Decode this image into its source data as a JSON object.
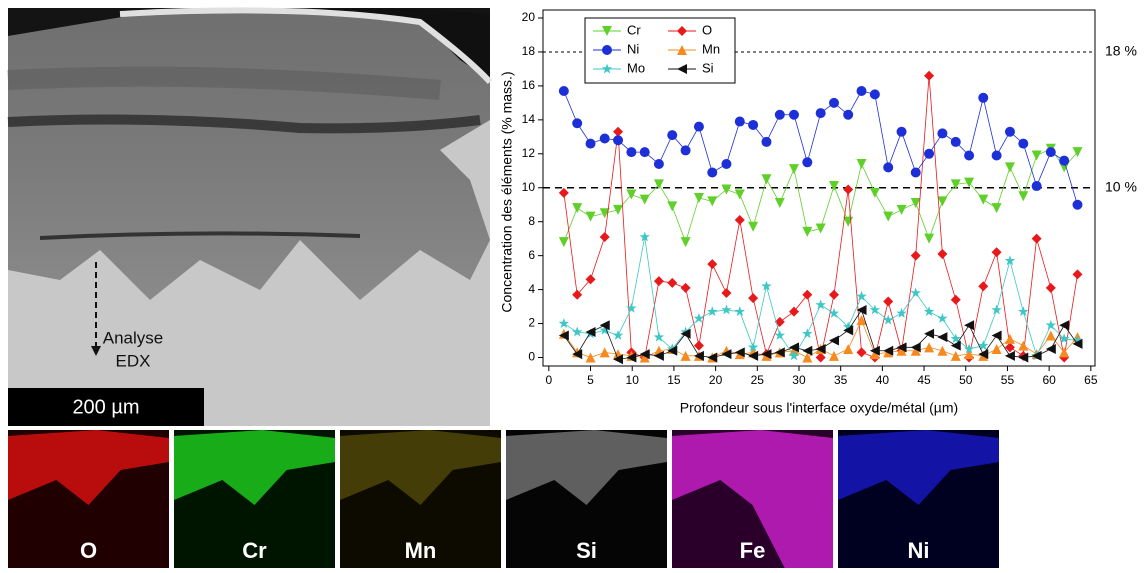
{
  "chart_data": {
    "type": "line",
    "xlabel": "Profondeur sous l'interface oxyde/métal (µm)",
    "ylabel": "Concentration des éléments (% mass.)",
    "xlim": [
      -0.7,
      65.5
    ],
    "ylim": [
      -0.5,
      20
    ],
    "xticks": [
      0,
      5,
      10,
      15,
      20,
      25,
      30,
      35,
      40,
      45,
      50,
      55,
      60,
      65
    ],
    "yticks": [
      0,
      2,
      4,
      6,
      8,
      10,
      12,
      14,
      16,
      18,
      20
    ],
    "x": [
      1.8,
      3.4,
      5.0,
      6.7,
      8.3,
      9.9,
      11.5,
      13.2,
      14.8,
      16.4,
      18.0,
      19.6,
      21.3,
      22.9,
      24.5,
      26.1,
      27.7,
      29.4,
      31.0,
      32.6,
      34.2,
      35.9,
      37.5,
      39.1,
      40.7,
      42.3,
      44.0,
      45.6,
      47.2,
      48.8,
      50.4,
      52.1,
      53.7,
      55.3,
      56.9,
      58.5,
      60.2,
      61.8,
      63.4
    ],
    "legend": "upper-left",
    "series": [
      {
        "name": "Cr",
        "color": "#5fcf2a",
        "marker": "triangle-down",
        "values": [
          6.8,
          8.8,
          8.3,
          8.5,
          8.7,
          9.6,
          9.3,
          10.2,
          8.9,
          6.8,
          9.4,
          9.2,
          9.9,
          9.6,
          7.7,
          10.5,
          9.1,
          11.1,
          7.4,
          7.6,
          10.1,
          8.0,
          11.4,
          9.7,
          8.3,
          8.7,
          9.1,
          7.0,
          9.2,
          10.2,
          10.3,
          9.3,
          8.8,
          11.2,
          9.5,
          11.9,
          12.3,
          11.2,
          12.1
        ]
      },
      {
        "name": "O",
        "color": "#e8191b",
        "marker": "diamond",
        "values": [
          9.7,
          3.7,
          4.6,
          7.1,
          13.3,
          0.3,
          0.0,
          4.5,
          4.4,
          4.1,
          0.7,
          5.5,
          3.8,
          8.1,
          3.5,
          0.2,
          2.1,
          2.7,
          3.7,
          0.0,
          3.7,
          9.9,
          0.3,
          0.0,
          3.3,
          0.4,
          6.0,
          16.6,
          6.1,
          3.4,
          0.0,
          4.2,
          6.2,
          0.6,
          0.1,
          7.0,
          4.1,
          0.0,
          4.9
        ]
      },
      {
        "name": "Ni",
        "color": "#1d2fd6",
        "marker": "circle",
        "values": [
          15.7,
          13.8,
          12.6,
          12.9,
          12.8,
          12.1,
          12.1,
          11.4,
          13.1,
          12.2,
          13.6,
          10.9,
          11.4,
          13.9,
          13.7,
          12.7,
          14.3,
          14.3,
          11.5,
          14.4,
          15.0,
          14.3,
          15.7,
          15.5,
          11.2,
          13.3,
          10.9,
          12.0,
          13.2,
          12.7,
          11.9,
          15.3,
          11.9,
          13.3,
          12.6,
          10.1,
          12.1,
          11.6,
          9.0
        ]
      },
      {
        "name": "Mn",
        "color": "#f58a1f",
        "marker": "triangle-up",
        "values": [
          1.4,
          0.3,
          0.0,
          0.3,
          0.2,
          0.1,
          0.0,
          0.4,
          0.5,
          0.1,
          0.1,
          0.0,
          0.4,
          0.2,
          0.3,
          0.1,
          0.3,
          0.4,
          0.0,
          0.5,
          0.1,
          0.5,
          2.2,
          0.2,
          0.3,
          0.4,
          0.4,
          0.6,
          0.4,
          0.1,
          0.2,
          0.1,
          0.5,
          1.1,
          0.7,
          0.2,
          1.3,
          0.3,
          1.2
        ]
      },
      {
        "name": "Mo",
        "color": "#3fc6c6",
        "marker": "star",
        "values": [
          2.0,
          1.5,
          1.4,
          1.6,
          1.3,
          2.9,
          7.1,
          1.2,
          0.5,
          1.5,
          2.3,
          2.7,
          2.8,
          2.7,
          0.6,
          4.2,
          1.3,
          0.1,
          1.4,
          3.1,
          2.6,
          1.8,
          3.6,
          2.8,
          2.2,
          2.6,
          3.8,
          2.7,
          2.3,
          1.1,
          0.5,
          0.7,
          2.8,
          5.7,
          2.7,
          0.1,
          1.9,
          1.1,
          1.0
        ]
      },
      {
        "name": "Si",
        "color": "#111111",
        "marker": "triangle-left",
        "values": [
          1.3,
          0.2,
          1.5,
          1.9,
          -0.1,
          0.0,
          0.2,
          0.1,
          0.4,
          1.4,
          0.1,
          0.0,
          0.2,
          0.3,
          0.1,
          0.2,
          0.3,
          0.6,
          0.4,
          0.5,
          1.0,
          1.6,
          2.8,
          0.4,
          0.4,
          0.6,
          0.6,
          1.4,
          1.2,
          0.7,
          1.9,
          0.2,
          1.3,
          0.1,
          0.0,
          0.1,
          0.5,
          1.9,
          0.8
        ]
      }
    ],
    "reference_lines": [
      {
        "value": 18,
        "label": "18 %",
        "style": "dotted"
      },
      {
        "value": 10,
        "label": "10 %",
        "style": "dashed"
      }
    ]
  },
  "micrograph": {
    "annotation": [
      "Analyse",
      "EDX"
    ],
    "scale_bar": "200 µm"
  },
  "edx_maps": [
    "O",
    "Cr",
    "Mn",
    "Si",
    "Fe",
    "Ni"
  ]
}
